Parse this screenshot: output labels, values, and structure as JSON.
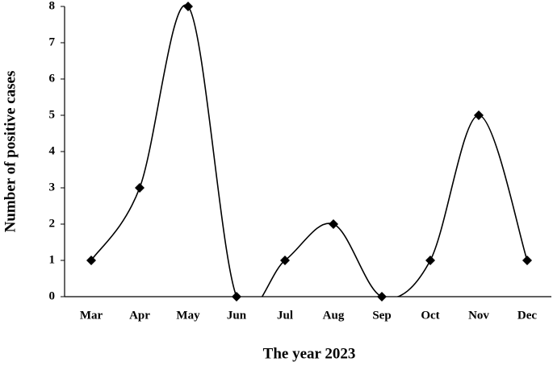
{
  "chart_data": {
    "type": "line",
    "x_label": "The year 2023",
    "y_label": "Number of positive cases",
    "categories": [
      "Mar",
      "Apr",
      "May",
      "Jun",
      "Jul",
      "Aug",
      "Sep",
      "Oct",
      "Nov",
      "Dec"
    ],
    "series": [
      {
        "color": "#000000",
        "values": [
          1,
          3,
          8,
          0,
          1,
          2,
          0,
          1,
          5,
          1
        ]
      }
    ],
    "ylim": [
      0,
      8
    ],
    "yticks": [
      0,
      1,
      2,
      3,
      4,
      5,
      6,
      7,
      8
    ],
    "grid": false,
    "smooth": true,
    "marker": "diamond"
  }
}
